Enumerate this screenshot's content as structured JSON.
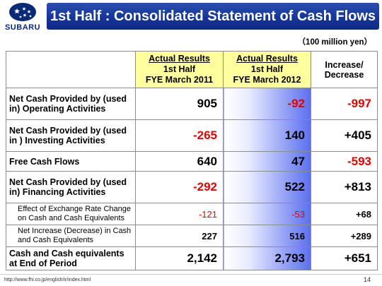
{
  "header": {
    "logo_text": "SUBARU",
    "title": "1st Half : Consolidated Statement of Cash Flows"
  },
  "unit_note": "（100 million yen）",
  "table": {
    "columns": [
      {
        "line1": "Actual Results",
        "line2": "1st Half",
        "line3": "FYE March 2011"
      },
      {
        "line1": "Actual Results",
        "line2": "1st Half",
        "line3": "FYE March 2012"
      },
      {
        "line1": "Increase/",
        "line2": "Decrease"
      }
    ],
    "rows": [
      {
        "label": "Net Cash Provided by (used in) Operating Activities",
        "fy2011": "905",
        "fy2012": "-92",
        "change": "-997"
      },
      {
        "label": "Net Cash Provided by (used in ) Investing Activities",
        "fy2011": "-265",
        "fy2012": "140",
        "change": "+405"
      },
      {
        "label": "Free Cash Flows",
        "fy2011": "640",
        "fy2012": "47",
        "change": "-593"
      },
      {
        "label": "Net Cash Provided by (used in) Financing Activities",
        "fy2011": "-292",
        "fy2012": "522",
        "change": "+813"
      },
      {
        "label": "Effect of Exchange Rate Change on Cash and Cash Equivalents",
        "fy2011": "-121",
        "fy2012": "-53",
        "change": "+68"
      },
      {
        "label": "Net Increase (Decrease) in Cash and Cash Equivalents",
        "fy2011": "227",
        "fy2012": "516",
        "change": "+289"
      },
      {
        "label": "Cash and Cash equivalents at End of Period",
        "fy2011": "2,142",
        "fy2012": "2,793",
        "change": "+651"
      }
    ]
  },
  "footer": {
    "url": "http://www.fhi.co.jp/english/ir/index.html",
    "page_number": "14"
  },
  "colors": {
    "title_bar": "#16359a",
    "header_highlight": "#ffff9e",
    "negative": "#e60000",
    "shade_accent": "#5a6ff0"
  }
}
